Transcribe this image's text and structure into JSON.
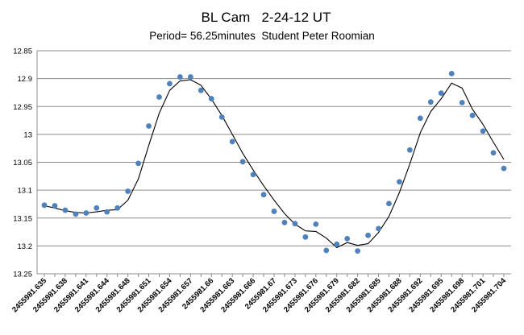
{
  "chart_data": {
    "type": "scatter",
    "title": "BL Cam   2-24-12 UT",
    "subtitle": "Period= 56.25minutes  Student Peter Roomian",
    "xlabel": "",
    "ylabel": "",
    "ylim": [
      13.25,
      12.85
    ],
    "y_ticks": [
      "12.85",
      "12.9",
      "12.95",
      "13",
      "13.05",
      "13.1",
      "13.15",
      "13.2",
      "13.25"
    ],
    "y_reversed": true,
    "grid": "horizontal",
    "x_tick_labels": [
      "2455981.635",
      "2455981.638",
      "2455981.641",
      "2455981.644",
      "2455981.648",
      "2455981.651",
      "2455981.654",
      "2455981.657",
      "2455981.66",
      "2455981.663",
      "2455981.666",
      "2455981.67",
      "2455981.673",
      "2455981.676",
      "2455981.679",
      "2455981.682",
      "2455981.685",
      "2455981.688",
      "2455981.692",
      "2455981.695",
      "2455981.698",
      "2455981.701",
      "2455981.704"
    ],
    "point_color": "#4f81bd",
    "line_color": "#000000",
    "series": [
      {
        "kind": "points",
        "values": [
          13.127,
          13.128,
          13.136,
          13.143,
          13.141,
          13.132,
          13.139,
          13.132,
          13.102,
          13.052,
          12.985,
          12.933,
          12.909,
          12.897,
          12.897,
          12.921,
          12.936,
          12.969,
          13.013,
          13.049,
          13.072,
          13.108,
          13.138,
          13.158,
          13.16,
          13.184,
          13.161,
          13.208,
          13.197,
          13.187,
          13.209,
          13.181,
          13.169,
          13.124,
          13.085,
          13.028,
          12.971,
          12.942,
          12.926,
          12.891,
          12.943,
          12.966,
          12.994,
          13.033,
          13.061
        ]
      },
      {
        "kind": "line",
        "values": [
          13.128,
          13.132,
          13.137,
          13.14,
          13.141,
          13.139,
          13.136,
          13.135,
          13.118,
          13.08,
          13.02,
          12.962,
          12.921,
          12.904,
          12.902,
          12.912,
          12.937,
          12.966,
          13.0,
          13.034,
          13.064,
          13.092,
          13.118,
          13.142,
          13.161,
          13.173,
          13.174,
          13.186,
          13.203,
          13.194,
          13.199,
          13.196,
          13.176,
          13.147,
          13.104,
          13.053,
          12.997,
          12.959,
          12.936,
          12.908,
          12.917,
          12.955,
          12.982,
          13.014,
          13.045
        ]
      }
    ]
  }
}
